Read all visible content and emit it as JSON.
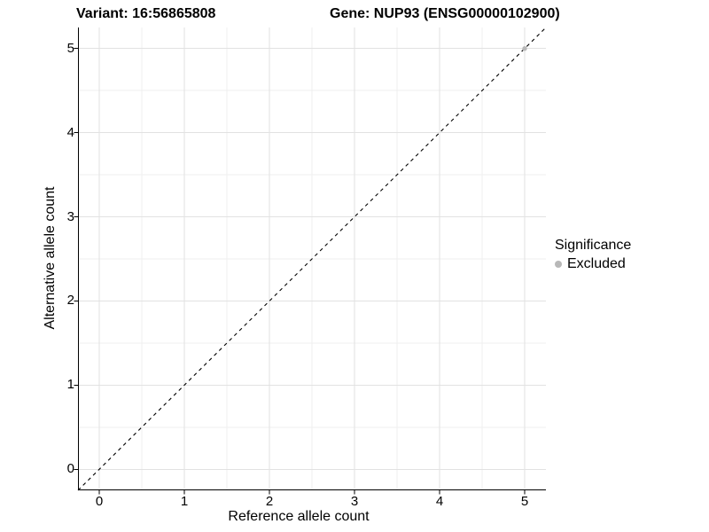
{
  "chart_data": {
    "type": "scatter",
    "titles": {
      "left": "Variant: 16:56865808",
      "right": "Gene: NUP93 (ENSG00000102900)"
    },
    "xlabel": "Reference allele count",
    "ylabel": "Alternative allele count",
    "xlim": [
      -0.25,
      5.25
    ],
    "ylim": [
      -0.25,
      5.25
    ],
    "x_ticks": [
      0,
      1,
      2,
      3,
      4,
      5
    ],
    "y_ticks": [
      0,
      1,
      2,
      3,
      4,
      5
    ],
    "x_minor_ticks": [
      0.5,
      1.5,
      2.5,
      3.5,
      4.5
    ],
    "y_minor_ticks": [
      0.5,
      1.5,
      2.5,
      3.5,
      4.5
    ],
    "grid": {
      "major_color": "#e2e2e2",
      "minor_color": "#efefef"
    },
    "axis_color": "#000000",
    "reference_line": {
      "type": "identity",
      "from": [
        -0.25,
        -0.25
      ],
      "to": [
        5.25,
        5.25
      ],
      "style": "dashed",
      "color": "#000000"
    },
    "series": [
      {
        "name": "Excluded",
        "color": "#b8b8b8",
        "points": [
          {
            "x": 5,
            "y": 5
          }
        ]
      }
    ],
    "legend": {
      "title": "Significance",
      "position": "right",
      "entries": [
        {
          "label": "Excluded",
          "color": "#b8b8b8"
        }
      ]
    }
  }
}
